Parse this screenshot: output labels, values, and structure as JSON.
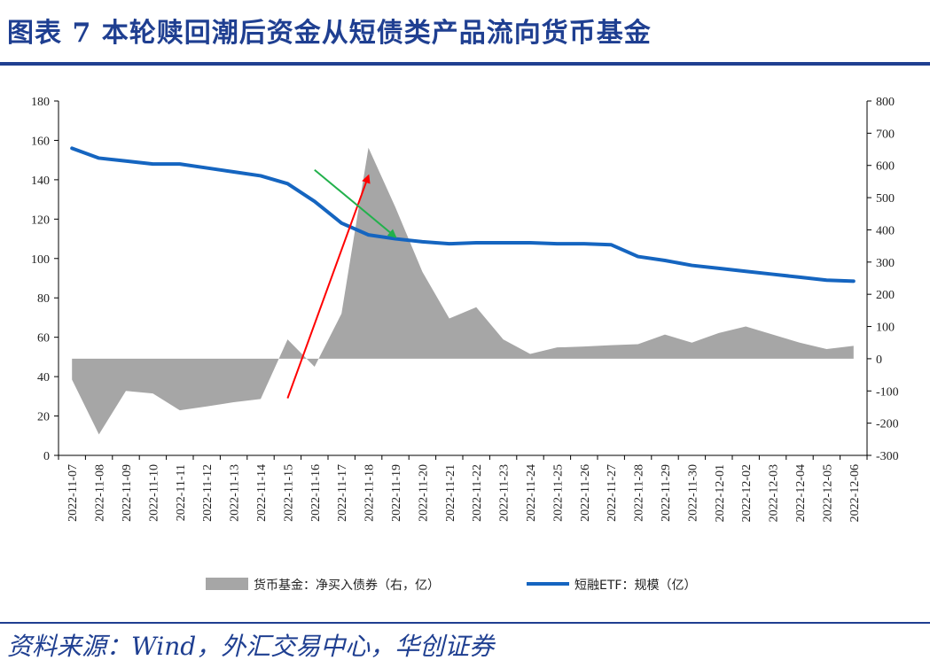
{
  "title": "图表 7 本轮赎回潮后资金从短债类产品流向货币基金",
  "source": "资料来源：Wind，外汇交易中心，华创证券",
  "colors": {
    "brand": "#1f3f91",
    "line": "#1565c0",
    "area": "#a6a6a6",
    "red_arrow": "#ff0000",
    "green_arrow": "#22b14c"
  },
  "chart_data": {
    "type": "area+line",
    "categories": [
      "2022-11-07",
      "2022-11-08",
      "2022-11-09",
      "2022-11-10",
      "2022-11-11",
      "2022-11-12",
      "2022-11-13",
      "2022-11-14",
      "2022-11-15",
      "2022-11-16",
      "2022-11-17",
      "2022-11-18",
      "2022-11-19",
      "2022-11-20",
      "2022-11-21",
      "2022-11-22",
      "2022-11-23",
      "2022-11-24",
      "2022-11-25",
      "2022-11-26",
      "2022-11-27",
      "2022-11-28",
      "2022-11-29",
      "2022-11-30",
      "2022-12-01",
      "2022-12-02",
      "2022-12-03",
      "2022-12-04",
      "2022-12-05",
      "2022-12-06"
    ],
    "y_left": {
      "ticks": [
        "180",
        "160",
        "140",
        "120",
        "100",
        "80",
        "60",
        "40",
        "20",
        "0"
      ],
      "ylim": [
        0,
        180
      ]
    },
    "y_right": {
      "ticks": [
        "800",
        "700",
        "600",
        "500",
        "400",
        "300",
        "200",
        "100",
        "0",
        "-100",
        "-200",
        "-300"
      ],
      "ylim": [
        -300,
        800
      ]
    },
    "series": [
      {
        "name": "货币基金：净买入债券（右，亿）",
        "axis": "right",
        "kind": "area",
        "values": [
          -65,
          -235,
          -100,
          -108,
          -160,
          -148,
          -135,
          -125,
          60,
          -25,
          140,
          655,
          470,
          270,
          125,
          160,
          60,
          15,
          35,
          38,
          42,
          45,
          75,
          50,
          80,
          100,
          75,
          50,
          30,
          40
        ]
      },
      {
        "name": "短融ETF：规模（亿）",
        "axis": "left",
        "kind": "line",
        "values": [
          156,
          151,
          149.5,
          148,
          148,
          146,
          144,
          142,
          138,
          129,
          118,
          112,
          110,
          108.5,
          107.5,
          108,
          108,
          108,
          107.5,
          107.5,
          107,
          101,
          99,
          96.5,
          95,
          93.5,
          92,
          90.5,
          89,
          88.5
        ]
      }
    ],
    "annotations": [
      {
        "type": "arrow",
        "color": "red",
        "from": [
          "2022-11-15",
          29
        ],
        "to": [
          "2022-11-18",
          142
        ]
      },
      {
        "type": "arrow",
        "color": "green",
        "from": [
          "2022-11-16",
          145
        ],
        "to": [
          "2022-11-19",
          111
        ]
      }
    ]
  },
  "legend": {
    "area_label": "货币基金：净买入债券（右，亿）",
    "line_label": "短融ETF：规模（亿）"
  }
}
